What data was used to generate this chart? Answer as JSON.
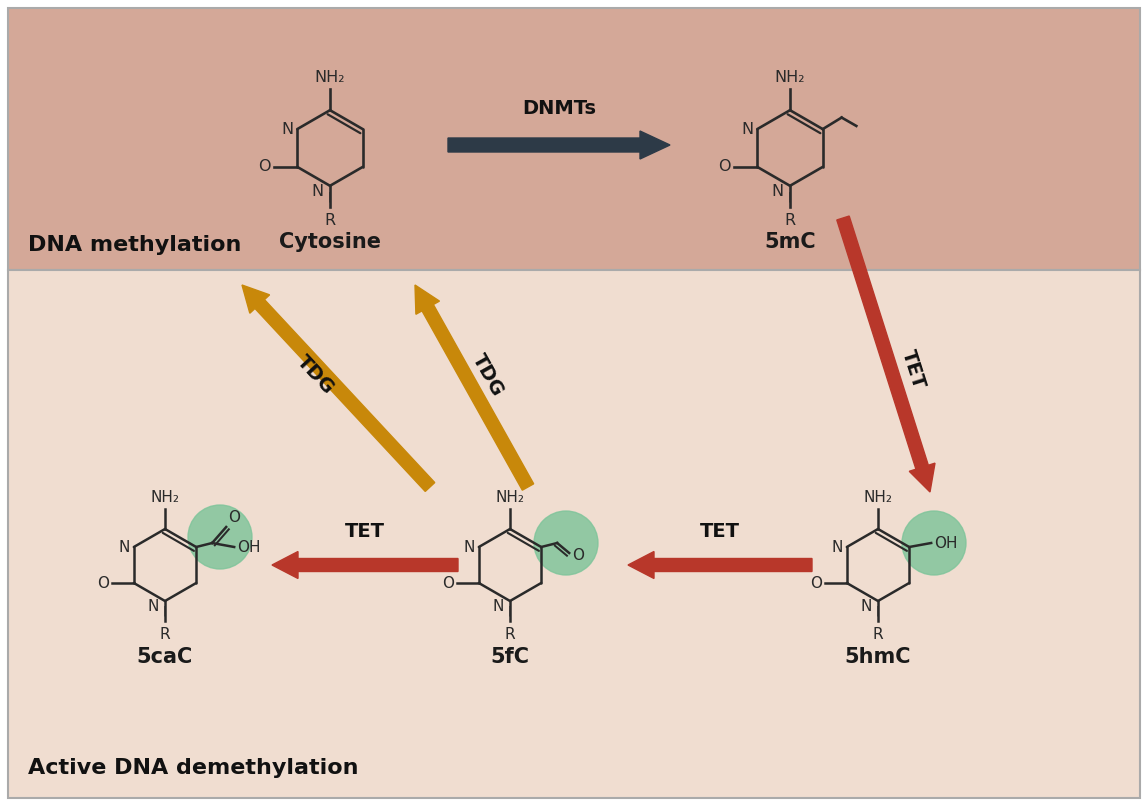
{
  "bg_top": "#d4a898",
  "bg_bottom": "#f0ddd0",
  "border_color": "#aaaaaa",
  "title_methylation": "DNA methylation",
  "title_demethylation": "Active DNA demethylation",
  "label_cytosine": "Cytosine",
  "label_5mC": "5mC",
  "label_5caC": "5caC",
  "label_5fC": "5fC",
  "label_5hmC": "5hmC",
  "label_DNMTs": "DNMTs",
  "label_TET_diag": "TET",
  "label_TET_horiz1": "TET",
  "label_TET_horiz2": "TET",
  "label_TDG1": "TDG",
  "label_TDG2": "TDG",
  "arrow_dark_color": "#2d3a47",
  "arrow_tet_color": "#b8372a",
  "arrow_tdg_color": "#c8880a",
  "green_circle_color": "#7ec49a",
  "green_circle_alpha": 0.82,
  "struct_color": "#2a2a2a",
  "label_fontsize": 15,
  "title_fontsize": 16,
  "enzyme_fontsize": 14,
  "struct_fontsize": 11
}
